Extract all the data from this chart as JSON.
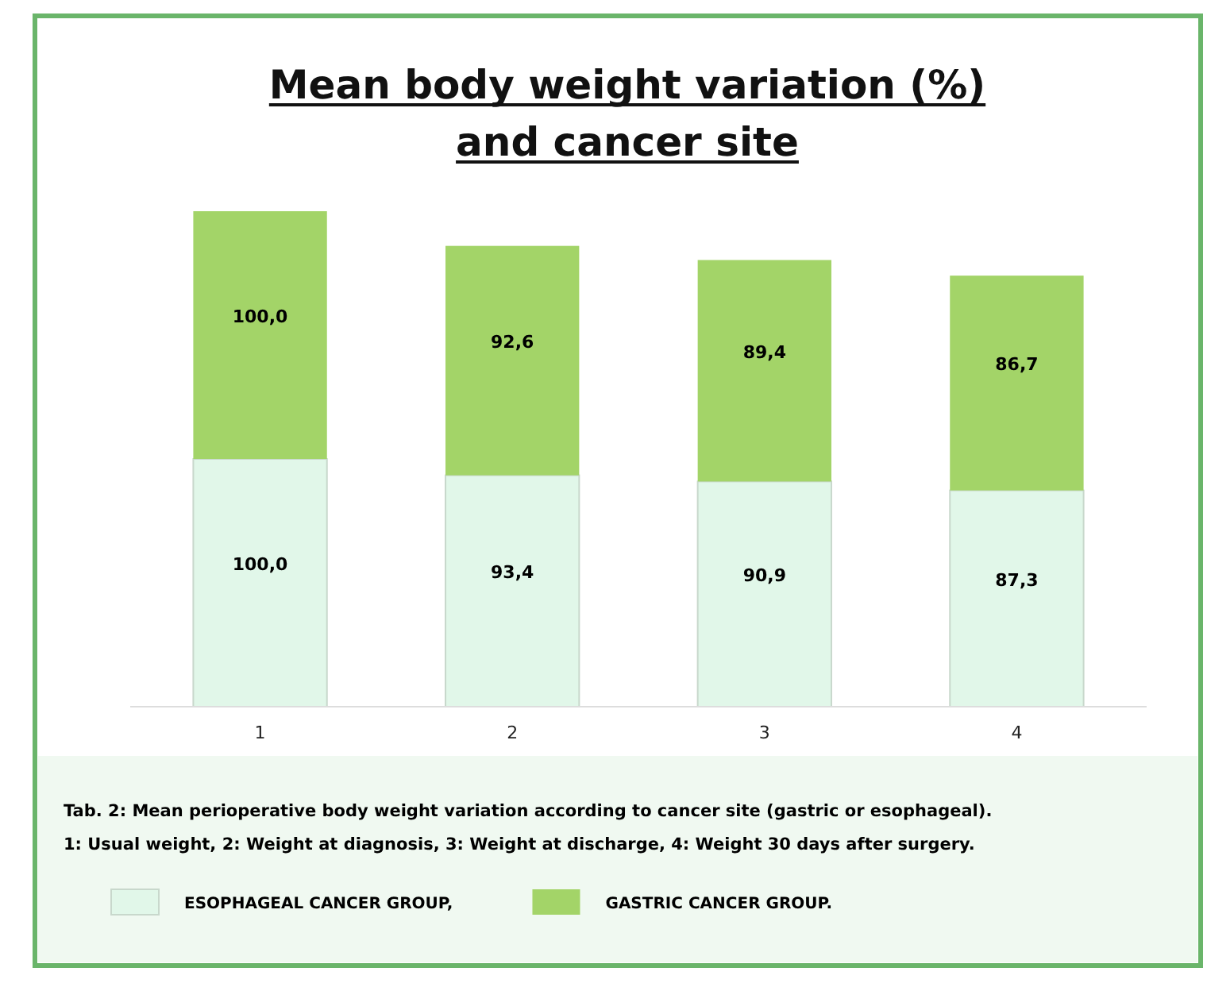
{
  "chart_data": {
    "type": "bar",
    "title": "Mean body weight variation (%)\nand cancer site",
    "categories": [
      "1",
      "2",
      "3",
      "4"
    ],
    "stacked": true,
    "legend": "bottom",
    "data_labels": false,
    "series": [
      {
        "name": "ESOPHAGEAL CANCER GROUP,",
        "color": "#e1f7e9",
        "values": [
          100.0,
          93.4,
          90.9,
          87.3
        ],
        "value_labels": [
          "100,0",
          "93,4",
          "90,9",
          "87,3"
        ]
      },
      {
        "name": "GASTRIC CANCER GROUP.",
        "color": "#a3d468",
        "values": [
          100.0,
          92.6,
          89.4,
          86.7
        ],
        "value_labels": [
          "100,0",
          "92,6",
          "89,4",
          "86,7"
        ]
      }
    ],
    "annotations": [
      "Tab. 2: Mean perioperative body weight variation according to cancer site (gastric or esophageal).",
      "1: Usual weight, 2: Weight at diagnosis, 3: Weight at discharge, 4: Weight 30 days after surgery."
    ]
  }
}
